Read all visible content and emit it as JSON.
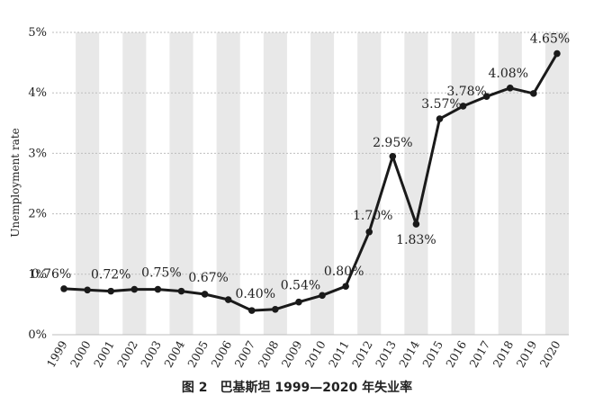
{
  "caption": "图 2　巴基斯坦 1999—2020 年失业率",
  "chart_data": {
    "type": "line",
    "title": "",
    "xlabel": "",
    "ylabel": "Unemployment rate",
    "categories": [
      "1999",
      "2000",
      "2001",
      "2002",
      "2003",
      "2004",
      "2005",
      "2006",
      "2007",
      "2008",
      "2009",
      "2010",
      "2011",
      "2012",
      "2013",
      "2014",
      "2015",
      "2016",
      "2017",
      "2018",
      "2019",
      "2020"
    ],
    "series": [
      {
        "values": [
          0.76,
          0.74,
          0.72,
          0.75,
          0.75,
          0.72,
          0.67,
          0.58,
          0.4,
          0.42,
          0.54,
          0.65,
          0.8,
          1.7,
          2.95,
          1.83,
          3.57,
          3.78,
          3.94,
          4.08,
          3.99,
          4.65
        ]
      }
    ],
    "data_labels": [
      {
        "index": 0,
        "text": "0.76%"
      },
      {
        "index": 2,
        "text": "0.72%"
      },
      {
        "index": 4,
        "text": "0.75%"
      },
      {
        "index": 6,
        "text": "0.67%"
      },
      {
        "index": 8,
        "text": "0.40%"
      },
      {
        "index": 10,
        "text": "0.54%"
      },
      {
        "index": 12,
        "text": "0.80%"
      },
      {
        "index": 13,
        "text": "1.70%"
      },
      {
        "index": 14,
        "text": "2.95%"
      },
      {
        "index": 15,
        "text": "1.83%"
      },
      {
        "index": 16,
        "text": "3.57%"
      },
      {
        "index": 17,
        "text": "3.78%"
      },
      {
        "index": 19,
        "text": "4.08%"
      },
      {
        "index": 21,
        "text": "4.65%"
      }
    ],
    "yticks": [
      {
        "value": 0,
        "label": "0%"
      },
      {
        "value": 1,
        "label": "1%"
      },
      {
        "value": 2,
        "label": "2%"
      },
      {
        "value": 3,
        "label": "3%"
      },
      {
        "value": 4,
        "label": "4%"
      },
      {
        "value": 5,
        "label": "5%"
      }
    ],
    "ylim": [
      0,
      5
    ],
    "grid": true,
    "alternating_column_shading": true,
    "colors": {
      "line": "#1a1a1a",
      "stripe": "#e8e8e8",
      "grid": "#bdbdbd",
      "text": "#222222"
    }
  }
}
